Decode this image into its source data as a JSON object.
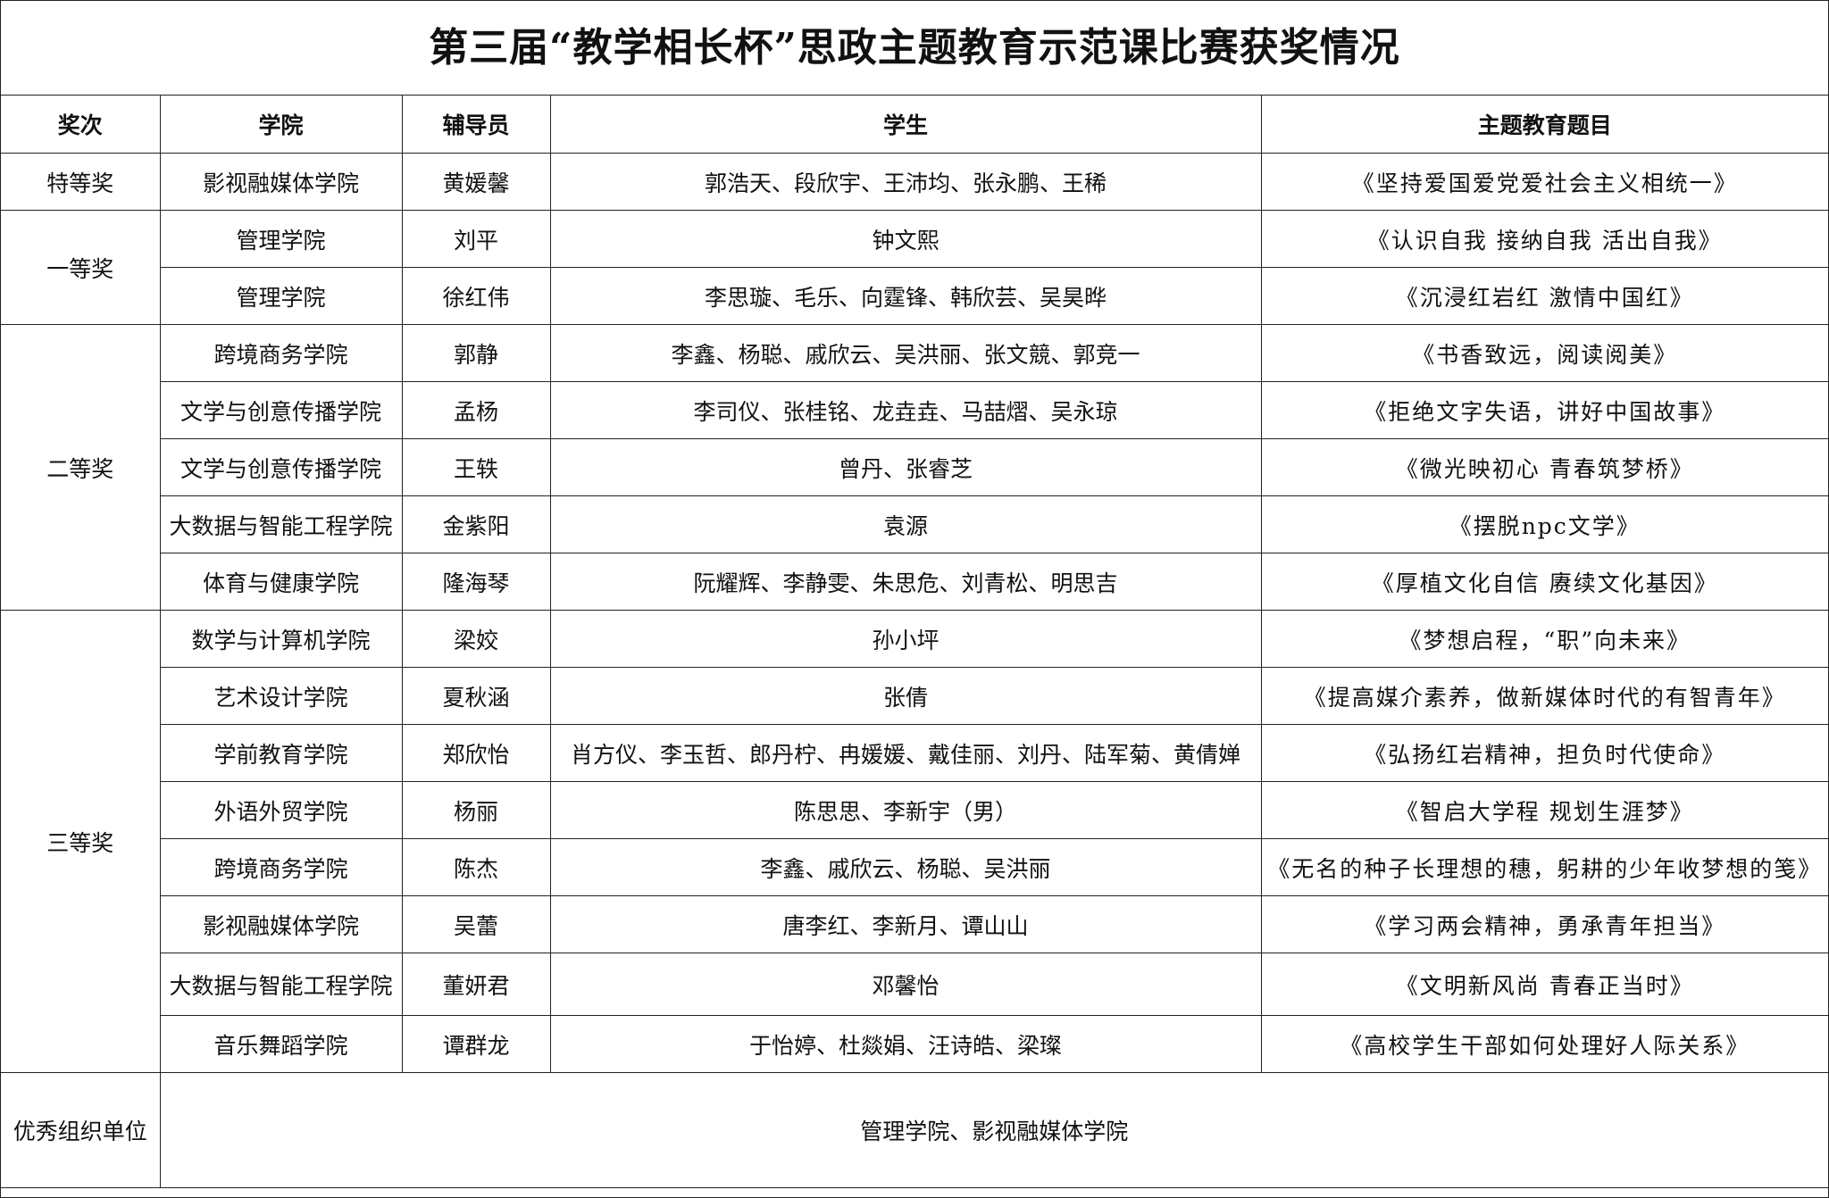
{
  "title": "第三届“教学相长杯”思政主题教育示范课比赛获奖情况",
  "headers": [
    "奖次",
    "学院",
    "辅导员",
    "学生",
    "主题教育题目"
  ],
  "groups": [
    {
      "award": "特等奖",
      "rows": [
        {
          "college": "影视融媒体学院",
          "counselor": "黄媛馨",
          "students": "郭浩天、段欣宇、王沛均、张永鹏、王稀",
          "topic": "《坚持爱国爱党爱社会主义相统一》"
        }
      ]
    },
    {
      "award": "一等奖",
      "rows": [
        {
          "college": "管理学院",
          "counselor": "刘平",
          "students": "钟文熙",
          "topic": "《认识自我 接纳自我 活出自我》"
        },
        {
          "college": "管理学院",
          "counselor": "徐红伟",
          "students": "李思璇、毛乐、向霆锋、韩欣芸、吴昊晔",
          "topic": "《沉浸红岩红 激情中国红》"
        }
      ]
    },
    {
      "award": "二等奖",
      "rows": [
        {
          "college": "跨境商务学院",
          "counselor": "郭静",
          "students": "李鑫、杨聪、戚欣云、吴洪丽、张文競、郭竞一",
          "topic": "《书香致远，阅读阅美》"
        },
        {
          "college": "文学与创意传播学院",
          "counselor": "孟杨",
          "students": "李司仪、张桂铭、龙垚垚、马喆熠、吴永琼",
          "topic": "《拒绝文字失语，讲好中国故事》"
        },
        {
          "college": "文学与创意传播学院",
          "counselor": "王轶",
          "students": "曾丹、张睿芝",
          "topic": "《微光映初心 青春筑梦桥》"
        },
        {
          "college": "大数据与智能工程学院",
          "counselor": "金紫阳",
          "students": "袁源",
          "topic": "《摆脱npc文学》"
        },
        {
          "college": "体育与健康学院",
          "counselor": "隆海琴",
          "students": "阮耀辉、李静雯、朱思危、刘青松、明思吉",
          "topic": "《厚植文化自信 赓续文化基因》"
        }
      ]
    },
    {
      "award": "三等奖",
      "rows": [
        {
          "college": "数学与计算机学院",
          "counselor": "梁姣",
          "students": "孙小坪",
          "topic": "《梦想启程，“职”向未来》"
        },
        {
          "college": "艺术设计学院",
          "counselor": "夏秋涵",
          "students": "张倩",
          "topic": "《提高媒介素养，做新媒体时代的有智青年》"
        },
        {
          "college": "学前教育学院",
          "counselor": "郑欣怡",
          "students": "肖方仪、李玉哲、郎丹柠、冉媛媛、戴佳丽、刘丹、陆军菊、黄倩婵",
          "topic": "《弘扬红岩精神，担负时代使命》"
        },
        {
          "college": "外语外贸学院",
          "counselor": "杨丽",
          "students": "陈思思、李新宇（男）",
          "topic": "《智启大学程 规划生涯梦》"
        },
        {
          "college": "跨境商务学院",
          "counselor": "陈杰",
          "students": "李鑫、戚欣云、杨聪、吴洪丽",
          "topic": "《无名的种子长理想的穗，躬耕的少年收梦想的笺》"
        },
        {
          "college": "影视融媒体学院",
          "counselor": "吴蕾",
          "students": "唐李红、李新月、谭山山",
          "topic": "《学习两会精神，勇承青年担当》"
        },
        {
          "college": "大数据与智能工程学院",
          "counselor": "董妍君",
          "students": "邓馨怡",
          "topic": "《文明新风尚 青春正当时》"
        },
        {
          "college": "音乐舞蹈学院",
          "counselor": "谭群龙",
          "students": "于怡婷、杜燚娟、汪诗皓、梁璨",
          "topic": "《高校学生干部如何处理好人际关系》"
        }
      ]
    }
  ],
  "footer": {
    "label": "优秀组织单位",
    "value": "管理学院、影视融媒体学院"
  }
}
